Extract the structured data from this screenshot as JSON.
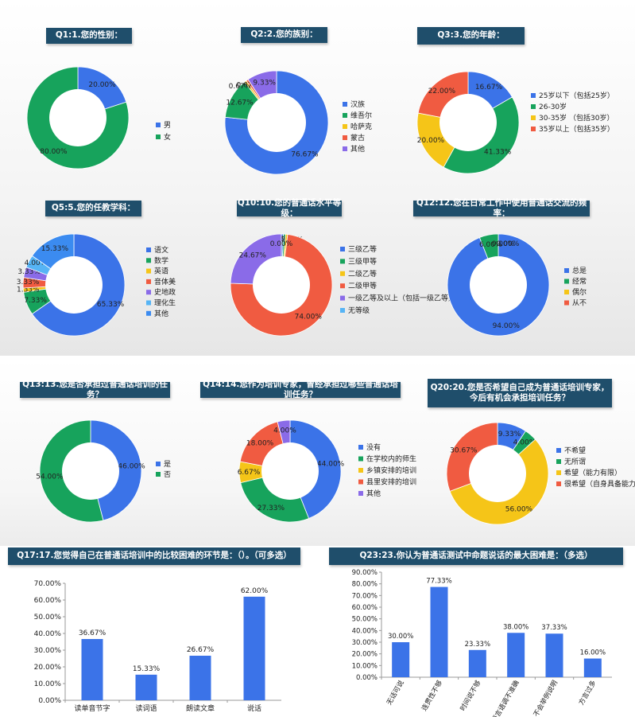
{
  "colors": {
    "blue": "#3b73e8",
    "green": "#17a35c",
    "yellow": "#f5c518",
    "red": "#f05b41",
    "purple": "#8a6be8",
    "cyan": "#56b4f5",
    "title_bg": "#1f4e6b"
  },
  "chart_data": [
    {
      "type": "pie",
      "donut": true,
      "title": "Q1:1.您的性别：",
      "labels": [
        "男",
        "女"
      ],
      "values": [
        20.0,
        80.0
      ],
      "value_labels": [
        "20.00%",
        "80.00%"
      ],
      "colors": [
        "#3b73e8",
        "#17a35c"
      ]
    },
    {
      "type": "pie",
      "donut": true,
      "title": "Q2:2.您的族别：",
      "labels": [
        "汉族",
        "维吾尔",
        "哈萨克",
        "蒙古",
        "其他"
      ],
      "values": [
        76.67,
        12.67,
        0.67,
        0.67,
        9.33
      ],
      "value_labels": [
        "76.67%",
        "12.67%",
        "0.67%",
        "0.67%",
        "9.33%"
      ],
      "colors": [
        "#3b73e8",
        "#17a35c",
        "#f5c518",
        "#f05b41",
        "#8a6be8"
      ]
    },
    {
      "type": "pie",
      "donut": true,
      "title": "Q3:3.您的年龄：",
      "labels": [
        "25岁以下（包括25岁）",
        "26-30岁",
        "30-35岁 （包括30岁）",
        "35岁以上（包括35岁）"
      ],
      "values": [
        16.67,
        41.33,
        20.0,
        22.0
      ],
      "value_labels": [
        "16.67%",
        "41.33%",
        "20.00%",
        "22.00%"
      ],
      "colors": [
        "#3b73e8",
        "#17a35c",
        "#f5c518",
        "#f05b41"
      ]
    },
    {
      "type": "pie",
      "donut": true,
      "title": "Q5:5.您的任教学科：",
      "labels": [
        "语文",
        "数学",
        "英语",
        "音体美",
        "史地政",
        "理化生",
        "其他"
      ],
      "values": [
        65.33,
        7.33,
        1.33,
        3.33,
        3.33,
        4.0,
        15.33
      ],
      "value_labels": [
        "65.33%",
        "7.33%",
        "1.33%",
        "3.33%",
        "3.33%",
        "4.00%",
        "15.33%"
      ],
      "colors": [
        "#3b73e8",
        "#17a35c",
        "#f5c518",
        "#f05b41",
        "#8a6be8",
        "#56b4f5",
        "#3b8bf0"
      ]
    },
    {
      "type": "pie",
      "donut": true,
      "title": "Q10:10.您的普通话水平等级：",
      "labels": [
        "三级乙等",
        "三级甲等",
        "二级乙等",
        "二级甲等",
        "一级乙等及以上（包括一级乙等）",
        "无等级"
      ],
      "values": [
        0.67,
        0.67,
        0.67,
        74.0,
        24.67,
        0.0
      ],
      "value_labels": [
        "0.67%",
        "0.67%",
        "0.67%",
        "74.00%",
        "24.67%",
        "0.00%"
      ],
      "colors": [
        "#3b73e8",
        "#17a35c",
        "#f5c518",
        "#f05b41",
        "#8a6be8",
        "#56b4f5"
      ]
    },
    {
      "type": "pie",
      "donut": true,
      "title": "Q12:12.您在日常工作中使用普通话交流的频率：",
      "labels": [
        "总是",
        "经常",
        "偶尔",
        "从不"
      ],
      "values": [
        94.0,
        6.0,
        0.0,
        0.0
      ],
      "value_labels": [
        "94.00%",
        "6.00%",
        "0.00%",
        "0.00%"
      ],
      "colors": [
        "#3b73e8",
        "#17a35c",
        "#f5c518",
        "#f05b41"
      ]
    },
    {
      "type": "pie",
      "donut": true,
      "title": "Q13:13.您是否承担过普通话培训的任务？",
      "labels": [
        "是",
        "否"
      ],
      "values": [
        46.0,
        54.0
      ],
      "value_labels": [
        "46.00%",
        "54.00%"
      ],
      "colors": [
        "#3b73e8",
        "#17a35c"
      ]
    },
    {
      "type": "pie",
      "donut": true,
      "title": "Q14:14.您作为培训专家，曾经承担过哪些普通话培训任务？",
      "labels": [
        "没有",
        "在学校内的师生",
        "乡镇安排的培训",
        "县里安排的培训",
        "其他"
      ],
      "values": [
        44.0,
        27.33,
        6.67,
        18.0,
        4.0
      ],
      "value_labels": [
        "44.00%",
        "27.33%",
        "6.67%",
        "18.00%",
        "4.00%"
      ],
      "colors": [
        "#3b73e8",
        "#17a35c",
        "#f5c518",
        "#f05b41",
        "#8a6be8"
      ]
    },
    {
      "type": "pie",
      "donut": true,
      "title": "Q20:20.您是否希望自己成为普通话培训专家，\n今后有机会承担培训任务？",
      "labels": [
        "不希望",
        "无所谓",
        "希望（能力有限）",
        "很希望（自身具备能力）"
      ],
      "values": [
        9.33,
        4.0,
        56.0,
        30.67
      ],
      "value_labels": [
        "9.33%",
        "4.00%",
        "56.00%",
        "30.67%"
      ],
      "colors": [
        "#3b73e8",
        "#17a35c",
        "#f5c518",
        "#f05b41"
      ]
    },
    {
      "type": "bar",
      "title": "Q17:17.您觉得自己在普通话培训中的比较困难的环节是：（）。（可多选）",
      "categories": [
        "读单音节字",
        "读词语",
        "朗读文章",
        "说话"
      ],
      "values": [
        36.67,
        15.33,
        26.67,
        62.0
      ],
      "value_labels": [
        "36.67%",
        "15.33%",
        "26.67%",
        "62.00%"
      ],
      "yticks": [
        "0.00%",
        "10.00%",
        "20.00%",
        "30.00%",
        "40.00%",
        "50.00%",
        "60.00%",
        "70.00%"
      ],
      "ylim": [
        0,
        70
      ],
      "color": "#3b73e8"
    },
    {
      "type": "bar",
      "title": "Q23:23.你认为普通话测试中命题说话的最大困难是：（多选）",
      "categories": [
        "无话可说",
        "连贯性不够",
        "时间说不够",
        "语言语调不准确",
        "不会举例说明",
        "方言过多"
      ],
      "values": [
        30.0,
        77.33,
        23.33,
        38.0,
        37.33,
        16.0
      ],
      "value_labels": [
        "30.00%",
        "77.33%",
        "23.33%",
        "38.00%",
        "37.33%",
        "16.00%"
      ],
      "yticks": [
        "0.00%",
        "10.00%",
        "20.00%",
        "30.00%",
        "40.00%",
        "50.00%",
        "60.00%",
        "70.00%",
        "80.00%",
        "90.00%"
      ],
      "ylim": [
        0,
        90
      ],
      "color": "#3b73e8"
    }
  ]
}
